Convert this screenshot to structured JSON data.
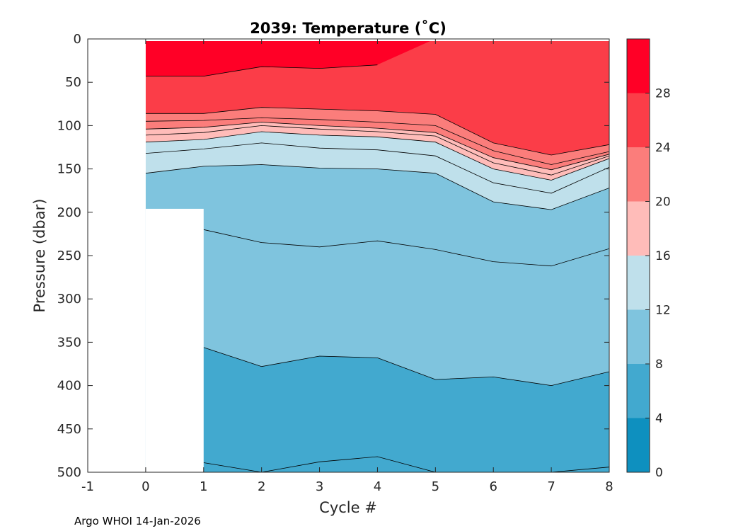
{
  "chart_data": {
    "type": "contourf",
    "title": "2039:  Temperature (˚C)",
    "xlabel": "Cycle #",
    "ylabel": "Pressure (dbar)",
    "xlim": [
      -1,
      8
    ],
    "ylim": [
      0,
      500
    ],
    "y_reversed": true,
    "x_ticks": [
      "-1",
      "0",
      "1",
      "2",
      "3",
      "4",
      "5",
      "6",
      "7",
      "8"
    ],
    "y_ticks": [
      "0",
      "50",
      "100",
      "150",
      "200",
      "250",
      "300",
      "350",
      "400",
      "450",
      "500"
    ],
    "contour_levels_c": [
      2,
      4,
      6,
      8,
      10,
      12,
      14,
      16,
      18,
      20,
      22,
      24,
      26,
      28,
      30
    ],
    "colorbar": {
      "ticks": [
        "0",
        "4",
        "8",
        "12",
        "16",
        "20",
        "24",
        "28"
      ],
      "range": [
        0,
        32
      ],
      "bands": [
        {
          "from": 0,
          "to": 4,
          "color": "#0e90bf"
        },
        {
          "from": 4,
          "to": 8,
          "color": "#42a9cf"
        },
        {
          "from": 8,
          "to": 12,
          "color": "#7fc4de"
        },
        {
          "from": 12,
          "to": 16,
          "color": "#bfe0eb"
        },
        {
          "from": 16,
          "to": 20,
          "color": "#ffbcb9"
        },
        {
          "from": 20,
          "to": 24,
          "color": "#fb7d7b"
        },
        {
          "from": 24,
          "to": 28,
          "color": "#fb3d48"
        },
        {
          "from": 28,
          "to": 32,
          "color": "#ff0026"
        }
      ]
    },
    "profiles": {
      "cycles": [
        0,
        1,
        2,
        3,
        4,
        5,
        6,
        7,
        8
      ],
      "max_pressure_dbar": [
        196,
        500,
        500,
        500,
        500,
        500,
        500,
        500,
        500
      ],
      "isotherms_dbar": [
        {
          "temp": 28,
          "depths": [
            43,
            43,
            32,
            34,
            30,
            null,
            null,
            null,
            null
          ]
        },
        {
          "temp": 24,
          "depths": [
            86,
            86,
            79,
            81,
            83,
            87,
            120,
            134,
            122
          ]
        },
        {
          "temp": 22,
          "depths": [
            95,
            94,
            91,
            93,
            96,
            100,
            129,
            145,
            130
          ]
        },
        {
          "temp": 20,
          "depths": [
            104,
            102,
            96,
            100,
            103,
            108,
            137,
            151,
            133
          ]
        },
        {
          "temp": 18,
          "depths": [
            111,
            108,
            100,
            104,
            107,
            112,
            143,
            157,
            135
          ]
        },
        {
          "temp": 16,
          "depths": [
            119,
            116,
            107,
            111,
            113,
            119,
            150,
            163,
            138
          ]
        },
        {
          "temp": 14,
          "depths": [
            132,
            127,
            120,
            126,
            128,
            135,
            166,
            178,
            148
          ]
        },
        {
          "temp": 12,
          "depths": [
            155,
            147,
            145,
            149,
            150,
            155,
            188,
            197,
            172
          ]
        },
        {
          "temp": 10,
          "depths": [
            null,
            220,
            235,
            240,
            233,
            243,
            257,
            262,
            242
          ]
        },
        {
          "temp": 8,
          "depths": [
            null,
            356,
            378,
            366,
            368,
            393,
            390,
            400,
            384
          ]
        },
        {
          "temp": 6,
          "depths": [
            null,
            489,
            500,
            488,
            482,
            500,
            500,
            500,
            494
          ]
        }
      ]
    }
  },
  "footer": "Argo WHOI 14-Jan-2026"
}
